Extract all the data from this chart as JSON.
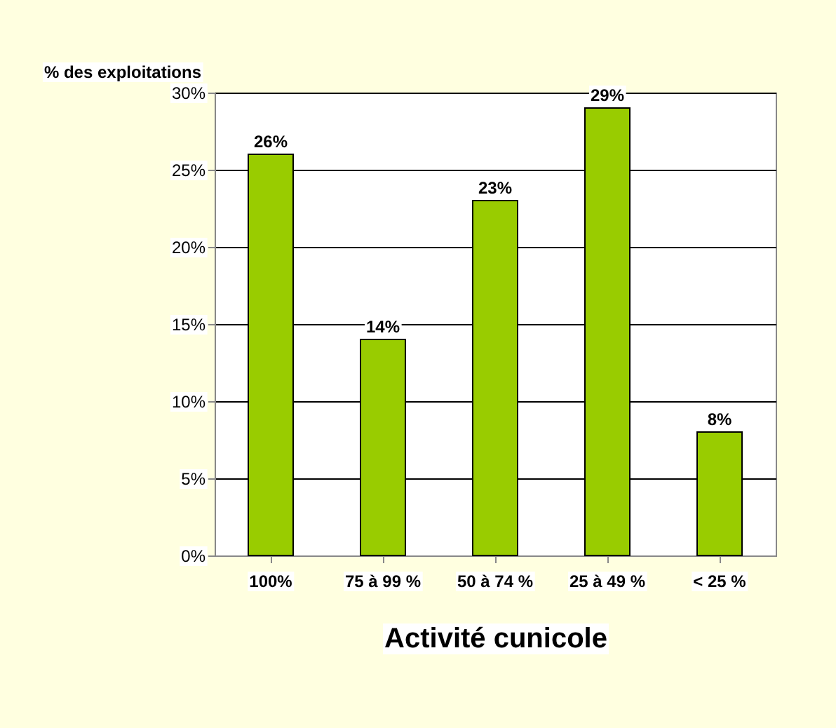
{
  "chart_data": {
    "type": "bar",
    "xlabel": "Activité cunicole",
    "ylabel": "% des exploitations",
    "categories": [
      "100%",
      "75 à 99 %",
      "50 à 74 %",
      "25 à 49 %",
      "< 25 %"
    ],
    "values": [
      26,
      14,
      23,
      29,
      8
    ],
    "value_labels": [
      "26%",
      "14%",
      "23%",
      "29%",
      "8%"
    ],
    "color": "#99cc00",
    "ylim": [
      0,
      30
    ],
    "yticks": [
      {
        "value": 0,
        "label": "0%"
      },
      {
        "value": 5,
        "label": "5%"
      },
      {
        "value": 10,
        "label": "10%"
      },
      {
        "value": 15,
        "label": "15%"
      },
      {
        "value": 20,
        "label": "20%"
      },
      {
        "value": 25,
        "label": "25%"
      },
      {
        "value": 30,
        "label": "30%"
      }
    ],
    "grid": "y"
  }
}
